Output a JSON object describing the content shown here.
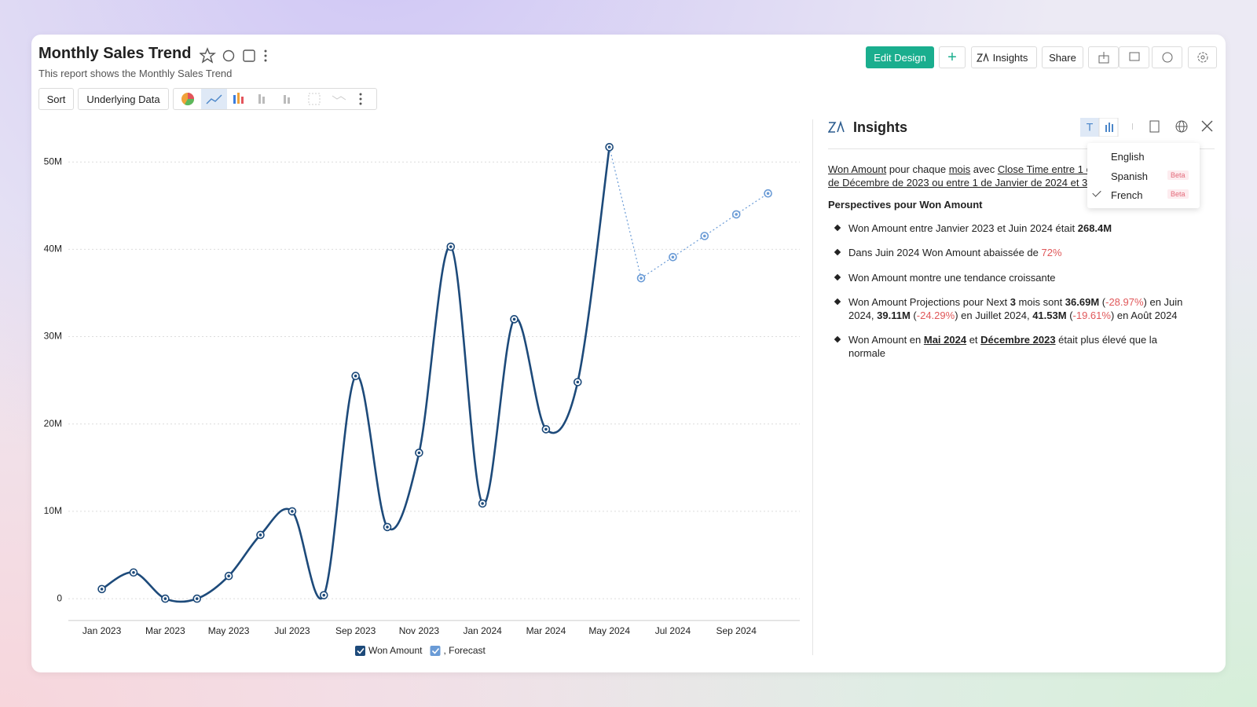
{
  "header": {
    "title": "Monthly Sales Trend",
    "subtitle": "This report shows the Monthly Sales Trend"
  },
  "toolbar": {
    "buttons": [
      "Edit Design",
      "Insights",
      "Share"
    ],
    "tools": [
      "Sort",
      "Underlying Data"
    ]
  },
  "chart_data": {
    "type": "line",
    "categories": [
      "Jan 2023",
      null,
      "Mar 2023",
      null,
      "May 2023",
      null,
      "Jul 2023",
      null,
      "Sep 2023",
      null,
      "Nov 2023",
      null,
      "Jan 2024",
      null,
      "Mar 2024",
      null,
      "May 2024",
      null,
      "Jul 2024",
      null,
      "Sep 2024",
      null
    ],
    "series": [
      {
        "name": "Won Amount",
        "color": "#1d4a7a",
        "values": [
          1100000,
          3000000,
          0,
          0,
          2600000,
          7300000,
          10000000,
          400000,
          25500000,
          8200000,
          16700000,
          40300000,
          10900000,
          32000000,
          19400000,
          24800000,
          51700000,
          null,
          null,
          null,
          null,
          null
        ]
      },
      {
        "name": ", Forecast",
        "color": "#6a9bd6",
        "values": [
          null,
          null,
          null,
          null,
          null,
          null,
          null,
          null,
          null,
          null,
          null,
          null,
          null,
          null,
          null,
          null,
          null,
          36690000,
          39110000,
          41530000,
          44000000,
          46400000
        ]
      }
    ],
    "ylim": [
      -2500000,
      55000000
    ],
    "yticks": [
      0,
      {
        "value": 10000000,
        "label": "10M"
      },
      {
        "value": 20000000,
        "label": "20M"
      },
      {
        "value": 30000000,
        "label": "30M"
      },
      {
        "value": 40000000,
        "label": "40M"
      },
      {
        "value": 50000000,
        "label": "50M"
      }
    ],
    "grid": true
  },
  "insights": {
    "title": "Insights",
    "intro": [
      [
        {
          "text": "Won Amount",
          "style": "underline"
        },
        {
          "text": " pour chaque "
        },
        {
          "text": "mois",
          "style": "underline"
        },
        {
          "text": " avec "
        },
        {
          "text": "Close Time entre 1 c",
          "style": "underline"
        }
      ],
      [
        {
          "text": "de Décembre de 2023 ou entre 1 de Janvier de 2024 et 3",
          "style": "underline"
        }
      ]
    ],
    "languages": [
      {
        "name": "English"
      },
      {
        "name": "Spanish",
        "badge": "Beta"
      },
      {
        "name": "French",
        "badge": "Beta",
        "selected": true
      }
    ],
    "heading": "Perspectives pour Won Amount",
    "bullets": [
      [
        {
          "text": "Won Amount entre Janvier 2023 et Juin 2024 était "
        },
        {
          "text": "268.4M",
          "style": "bold"
        }
      ],
      [
        {
          "text": "Dans Juin 2024 Won Amount abaissée de "
        },
        {
          "text": "72%",
          "style": "red"
        }
      ],
      [
        {
          "text": "Won Amount montre une tendance croissante"
        }
      ],
      [
        {
          "text": "Won Amount Projections pour Next "
        },
        {
          "text": "3",
          "style": "bold"
        },
        {
          "text": " mois sont "
        },
        {
          "text": "36.69M",
          "style": "bold"
        },
        {
          "text": " ("
        },
        {
          "text": "-28.97%",
          "style": "red"
        },
        {
          "text": ") en Juin 2024, "
        },
        {
          "text": "39.11M",
          "style": "bold"
        },
        {
          "text": " ("
        },
        {
          "text": "-24.29%",
          "style": "red"
        },
        {
          "text": ") en Juillet 2024, "
        },
        {
          "text": "41.53M",
          "style": "bold"
        },
        {
          "text": " ("
        },
        {
          "text": "-19.61%",
          "style": "red"
        },
        {
          "text": ") en Août 2024"
        }
      ],
      [
        {
          "text": "Won Amount en "
        },
        {
          "text": "Mai 2024",
          "style": "bold underline"
        },
        {
          "text": " et "
        },
        {
          "text": "Décembre 2023",
          "style": "bold underline"
        },
        {
          "text": " était plus élevé que la normale"
        }
      ]
    ]
  }
}
